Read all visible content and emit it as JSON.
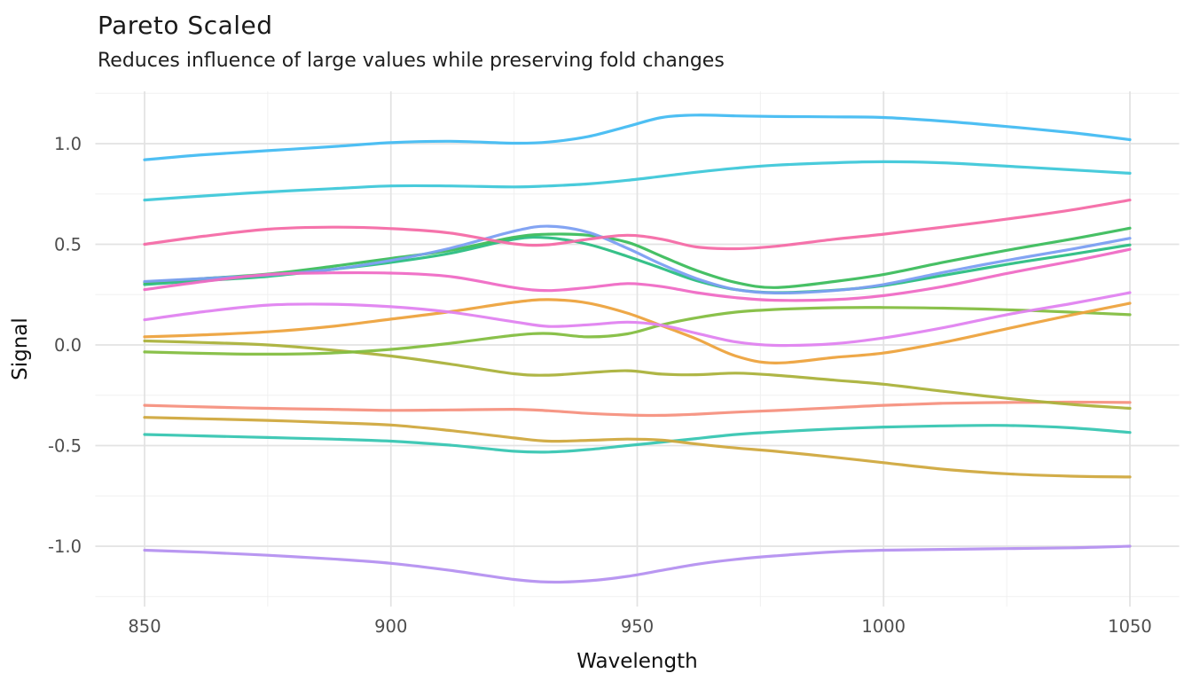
{
  "header": {
    "title": "Pareto Scaled",
    "subtitle": "Reduces influence of large values while preserving fold changes"
  },
  "colors": {
    "background": "#FFFFFF",
    "grid_major": "#E3E3E3",
    "grid_minor": "#F0F0F0",
    "axis_text": "#4D4D4D",
    "title_text": "#1A1A1A"
  },
  "chart_data": {
    "type": "line",
    "title": "Pareto Scaled",
    "subtitle": "Reduces influence of large values while preserving fold changes",
    "xlabel": "Wavelength",
    "ylabel": "Signal",
    "legend": "none",
    "grid": {
      "major": true,
      "minor": true
    },
    "xlim": [
      840,
      1060
    ],
    "ylim": [
      -1.3,
      1.26
    ],
    "x_ticks": [
      850,
      900,
      950,
      1000,
      1050
    ],
    "x_tick_labels": [
      "850",
      "900",
      "950",
      "1000",
      "1050"
    ],
    "x_minor_ticks": [
      875,
      925,
      975,
      1025
    ],
    "y_ticks": [
      1.0,
      0.5,
      0.0,
      -0.5,
      -1.0
    ],
    "y_tick_labels": [
      "1.0",
      "0.5",
      "0.0",
      "-0.5",
      "-1.0"
    ],
    "y_minor_ticks": [
      1.25,
      0.75,
      0.25,
      -0.25,
      -0.75,
      -1.25
    ],
    "x": [
      850,
      862,
      875,
      888,
      900,
      912,
      925,
      932,
      940,
      948,
      955,
      962,
      970,
      978,
      990,
      1000,
      1012,
      1025,
      1038,
      1050
    ],
    "series": [
      {
        "name": "line-teal",
        "color": "#38C6B2",
        "values": [
          -0.445,
          -0.452,
          -0.46,
          -0.468,
          -0.478,
          -0.498,
          -0.528,
          -0.532,
          -0.52,
          -0.5,
          -0.483,
          -0.465,
          -0.445,
          -0.432,
          -0.417,
          -0.408,
          -0.402,
          -0.4,
          -0.412,
          -0.435
        ]
      },
      {
        "name": "line-gold",
        "color": "#D0A93F",
        "values": [
          -0.36,
          -0.367,
          -0.375,
          -0.386,
          -0.398,
          -0.425,
          -0.462,
          -0.478,
          -0.474,
          -0.468,
          -0.473,
          -0.492,
          -0.512,
          -0.528,
          -0.558,
          -0.585,
          -0.617,
          -0.64,
          -0.652,
          -0.656
        ]
      },
      {
        "name": "line-salmon",
        "color": "#F5917F",
        "values": [
          -0.3,
          -0.308,
          -0.315,
          -0.32,
          -0.325,
          -0.323,
          -0.32,
          -0.327,
          -0.34,
          -0.348,
          -0.35,
          -0.344,
          -0.334,
          -0.326,
          -0.312,
          -0.3,
          -0.29,
          -0.286,
          -0.284,
          -0.286
        ]
      },
      {
        "name": "line-olive",
        "color": "#ABB23C",
        "values": [
          0.02,
          0.012,
          0.0,
          -0.025,
          -0.055,
          -0.095,
          -0.143,
          -0.15,
          -0.138,
          -0.128,
          -0.145,
          -0.148,
          -0.14,
          -0.15,
          -0.175,
          -0.195,
          -0.23,
          -0.265,
          -0.295,
          -0.315
        ]
      },
      {
        "name": "line-applegreen",
        "color": "#84BE41",
        "values": [
          -0.035,
          -0.042,
          -0.046,
          -0.04,
          -0.022,
          0.008,
          0.048,
          0.057,
          0.04,
          0.055,
          0.1,
          0.135,
          0.163,
          0.176,
          0.185,
          0.186,
          0.183,
          0.175,
          0.163,
          0.15
        ]
      },
      {
        "name": "line-orange",
        "color": "#EDA33E",
        "values": [
          0.04,
          0.05,
          0.065,
          0.092,
          0.128,
          0.165,
          0.212,
          0.225,
          0.208,
          0.158,
          0.095,
          0.03,
          -0.055,
          -0.09,
          -0.062,
          -0.04,
          0.012,
          0.08,
          0.148,
          0.207
        ]
      },
      {
        "name": "line-purple",
        "color": "#B591F0",
        "values": [
          -1.02,
          -1.03,
          -1.045,
          -1.063,
          -1.085,
          -1.12,
          -1.165,
          -1.178,
          -1.172,
          -1.15,
          -1.12,
          -1.09,
          -1.065,
          -1.048,
          -1.028,
          -1.02,
          -1.016,
          -1.012,
          -1.008,
          -1.0
        ]
      },
      {
        "name": "line-violet",
        "color": "#E083F0",
        "values": [
          0.125,
          0.165,
          0.198,
          0.202,
          0.19,
          0.163,
          0.115,
          0.092,
          0.1,
          0.113,
          0.098,
          0.058,
          0.015,
          -0.002,
          0.006,
          0.035,
          0.085,
          0.15,
          0.205,
          0.26
        ]
      },
      {
        "name": "line-emerald",
        "color": "#2CBE83",
        "values": [
          0.3,
          0.32,
          0.34,
          0.375,
          0.41,
          0.455,
          0.525,
          0.532,
          0.5,
          0.44,
          0.38,
          0.32,
          0.275,
          0.26,
          0.272,
          0.295,
          0.345,
          0.4,
          0.45,
          0.497
        ]
      },
      {
        "name": "line-green",
        "color": "#3DBD5D",
        "values": [
          0.31,
          0.33,
          0.352,
          0.39,
          0.43,
          0.47,
          0.535,
          0.55,
          0.545,
          0.51,
          0.44,
          0.37,
          0.31,
          0.285,
          0.315,
          0.35,
          0.41,
          0.47,
          0.525,
          0.58
        ]
      },
      {
        "name": "line-cornflower",
        "color": "#7C9FF2",
        "values": [
          0.315,
          0.33,
          0.347,
          0.375,
          0.42,
          0.48,
          0.565,
          0.59,
          0.56,
          0.48,
          0.4,
          0.33,
          0.275,
          0.258,
          0.27,
          0.3,
          0.36,
          0.42,
          0.475,
          0.53
        ]
      },
      {
        "name": "line-magenta",
        "color": "#EF6BC5",
        "values": [
          0.275,
          0.315,
          0.35,
          0.358,
          0.357,
          0.34,
          0.285,
          0.27,
          0.285,
          0.305,
          0.29,
          0.26,
          0.235,
          0.222,
          0.225,
          0.245,
          0.29,
          0.355,
          0.415,
          0.475
        ]
      },
      {
        "name": "line-hotpink",
        "color": "#F46BA6",
        "values": [
          0.5,
          0.54,
          0.575,
          0.585,
          0.578,
          0.556,
          0.502,
          0.498,
          0.525,
          0.545,
          0.525,
          0.487,
          0.478,
          0.49,
          0.525,
          0.55,
          0.585,
          0.625,
          0.67,
          0.72
        ]
      },
      {
        "name": "line-cyan",
        "color": "#3FC8D9",
        "values": [
          0.72,
          0.74,
          0.76,
          0.776,
          0.79,
          0.79,
          0.785,
          0.79,
          0.8,
          0.818,
          0.838,
          0.858,
          0.878,
          0.893,
          0.905,
          0.91,
          0.905,
          0.888,
          0.87,
          0.853
        ]
      },
      {
        "name": "line-skyblue",
        "color": "#45BCF2",
        "values": [
          0.92,
          0.945,
          0.965,
          0.985,
          1.005,
          1.012,
          1.002,
          1.008,
          1.035,
          1.085,
          1.13,
          1.142,
          1.138,
          1.135,
          1.133,
          1.13,
          1.112,
          1.085,
          1.055,
          1.02
        ]
      }
    ]
  }
}
